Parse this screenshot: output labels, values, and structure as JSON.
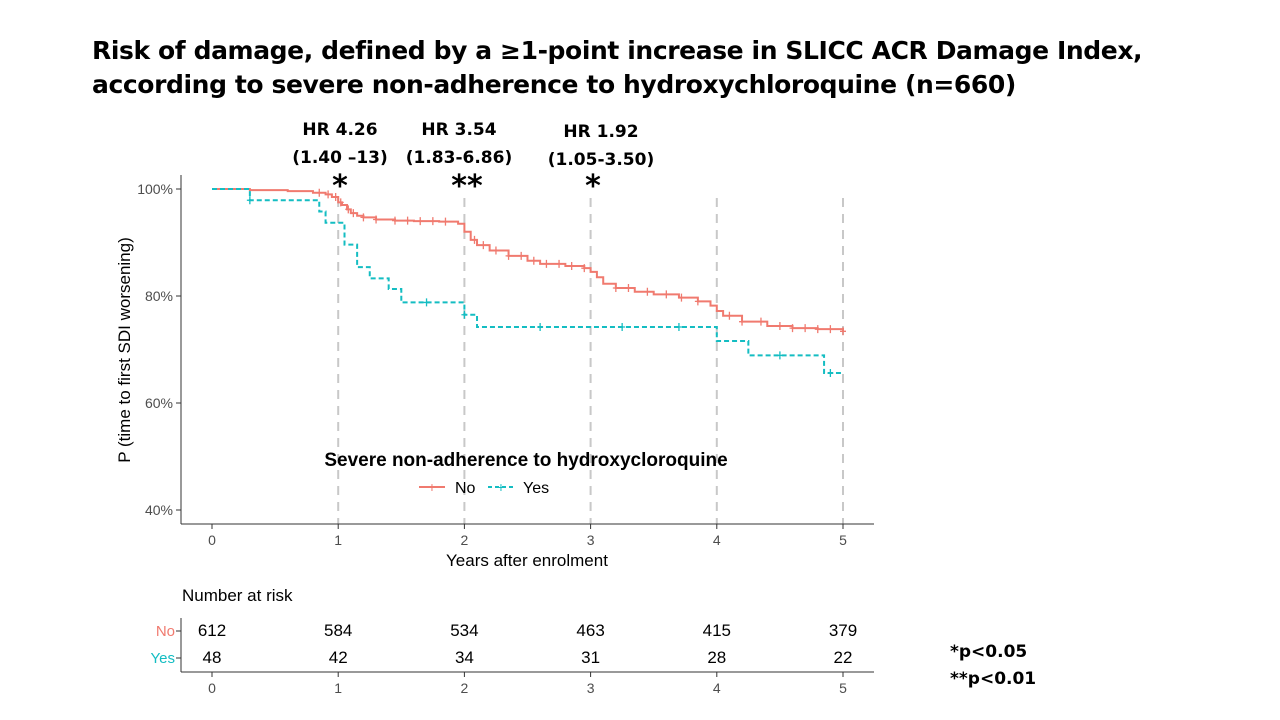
{
  "slide": {
    "title_line1": "Risk of damage, defined by a ≥1-point increase in SLICC ACR Damage Index,",
    "title_line2": "according to severe non-adherence to hydroxychloroquine (n=660)"
  },
  "hazard_ratios": [
    {
      "time": 1,
      "hr": "HR 4.26",
      "ci": "(1.40 –13)",
      "stars": "*"
    },
    {
      "time": 2,
      "hr": "HR 3.54",
      "ci": "(1.83-6.86)",
      "stars": "**"
    },
    {
      "time": 3,
      "hr": "HR 1.92",
      "ci": "(1.05-3.50)",
      "stars": "*"
    }
  ],
  "footnotes": {
    "p05": "*p<0.05",
    "p01": "**p<0.01"
  },
  "colors": {
    "no": "#F07A6F",
    "yes": "#14BDC2",
    "reference_line": "#c8c8c8",
    "axis": "#333333"
  },
  "chart_data": {
    "type": "line",
    "subtype": "kaplan-meier",
    "xlabel": "Years after enrolment",
    "ylabel": "P (time to first SDI worsening)",
    "xlim": [
      0,
      5
    ],
    "ylim": [
      0.4,
      1.0
    ],
    "x_ticks": [
      "0",
      "1",
      "2",
      "3",
      "4",
      "5"
    ],
    "y_ticks": [
      "40%",
      "60%",
      "80%",
      "100%"
    ],
    "reference_lines_x": [
      1,
      2,
      3,
      4,
      5
    ],
    "grid": false,
    "legend": {
      "title": "Severe non-adherence to hydroxycloroquine",
      "placement": "bottom-center inside plot",
      "entries": [
        "No",
        "Yes"
      ]
    },
    "series": [
      {
        "name": "No",
        "line_style": "solid",
        "x": [
          0,
          0.3,
          0.6,
          0.8,
          0.9,
          0.95,
          1.0,
          1.03,
          1.07,
          1.1,
          1.15,
          1.2,
          1.3,
          1.45,
          1.6,
          1.8,
          1.95,
          2.0,
          2.05,
          2.1,
          2.2,
          2.35,
          2.5,
          2.6,
          2.8,
          2.95,
          3.0,
          3.05,
          3.1,
          3.2,
          3.35,
          3.5,
          3.7,
          3.85,
          3.95,
          4.0,
          4.05,
          4.2,
          4.4,
          4.6,
          4.8,
          5.0
        ],
        "y": [
          1.0,
          0.998,
          0.996,
          0.993,
          0.99,
          0.985,
          0.975,
          0.97,
          0.962,
          0.955,
          0.95,
          0.947,
          0.943,
          0.941,
          0.94,
          0.939,
          0.935,
          0.92,
          0.905,
          0.895,
          0.885,
          0.875,
          0.866,
          0.86,
          0.856,
          0.852,
          0.845,
          0.835,
          0.823,
          0.815,
          0.808,
          0.803,
          0.797,
          0.79,
          0.782,
          0.772,
          0.763,
          0.752,
          0.744,
          0.74,
          0.738,
          0.734
        ],
        "censor_x": [
          0.85,
          0.92,
          0.98,
          1.02,
          1.08,
          1.12,
          1.2,
          1.3,
          1.45,
          1.55,
          1.65,
          1.75,
          1.85,
          2.08,
          2.15,
          2.25,
          2.35,
          2.45,
          2.55,
          2.65,
          2.75,
          2.85,
          2.95,
          3.2,
          3.3,
          3.45,
          3.6,
          3.72,
          3.85,
          4.1,
          4.2,
          4.35,
          4.5,
          4.6,
          4.7,
          4.8,
          4.9,
          5.0
        ]
      },
      {
        "name": "Yes",
        "line_style": "dashed",
        "x": [
          0,
          0.3,
          0.85,
          0.9,
          1.05,
          1.15,
          1.25,
          1.4,
          1.5,
          2.0,
          2.1,
          2.5,
          3.0,
          3.5,
          4.0,
          4.25,
          4.5,
          4.85,
          5.0
        ],
        "y": [
          1.0,
          0.979,
          0.958,
          0.937,
          0.896,
          0.854,
          0.833,
          0.813,
          0.788,
          0.765,
          0.742,
          0.742,
          0.742,
          0.742,
          0.716,
          0.689,
          0.689,
          0.656,
          0.656
        ],
        "censor_x": [
          0.3,
          1.7,
          2.0,
          2.6,
          3.25,
          3.7,
          4.5,
          4.9
        ]
      }
    ],
    "risk_table": {
      "title": "Number at risk",
      "times": [
        "0",
        "1",
        "2",
        "3",
        "4",
        "5"
      ],
      "rows": [
        {
          "label": "No",
          "values": [
            "612",
            "584",
            "534",
            "463",
            "415",
            "379"
          ]
        },
        {
          "label": "Yes",
          "values": [
            "48",
            "42",
            "34",
            "31",
            "28",
            "22"
          ]
        }
      ]
    }
  }
}
